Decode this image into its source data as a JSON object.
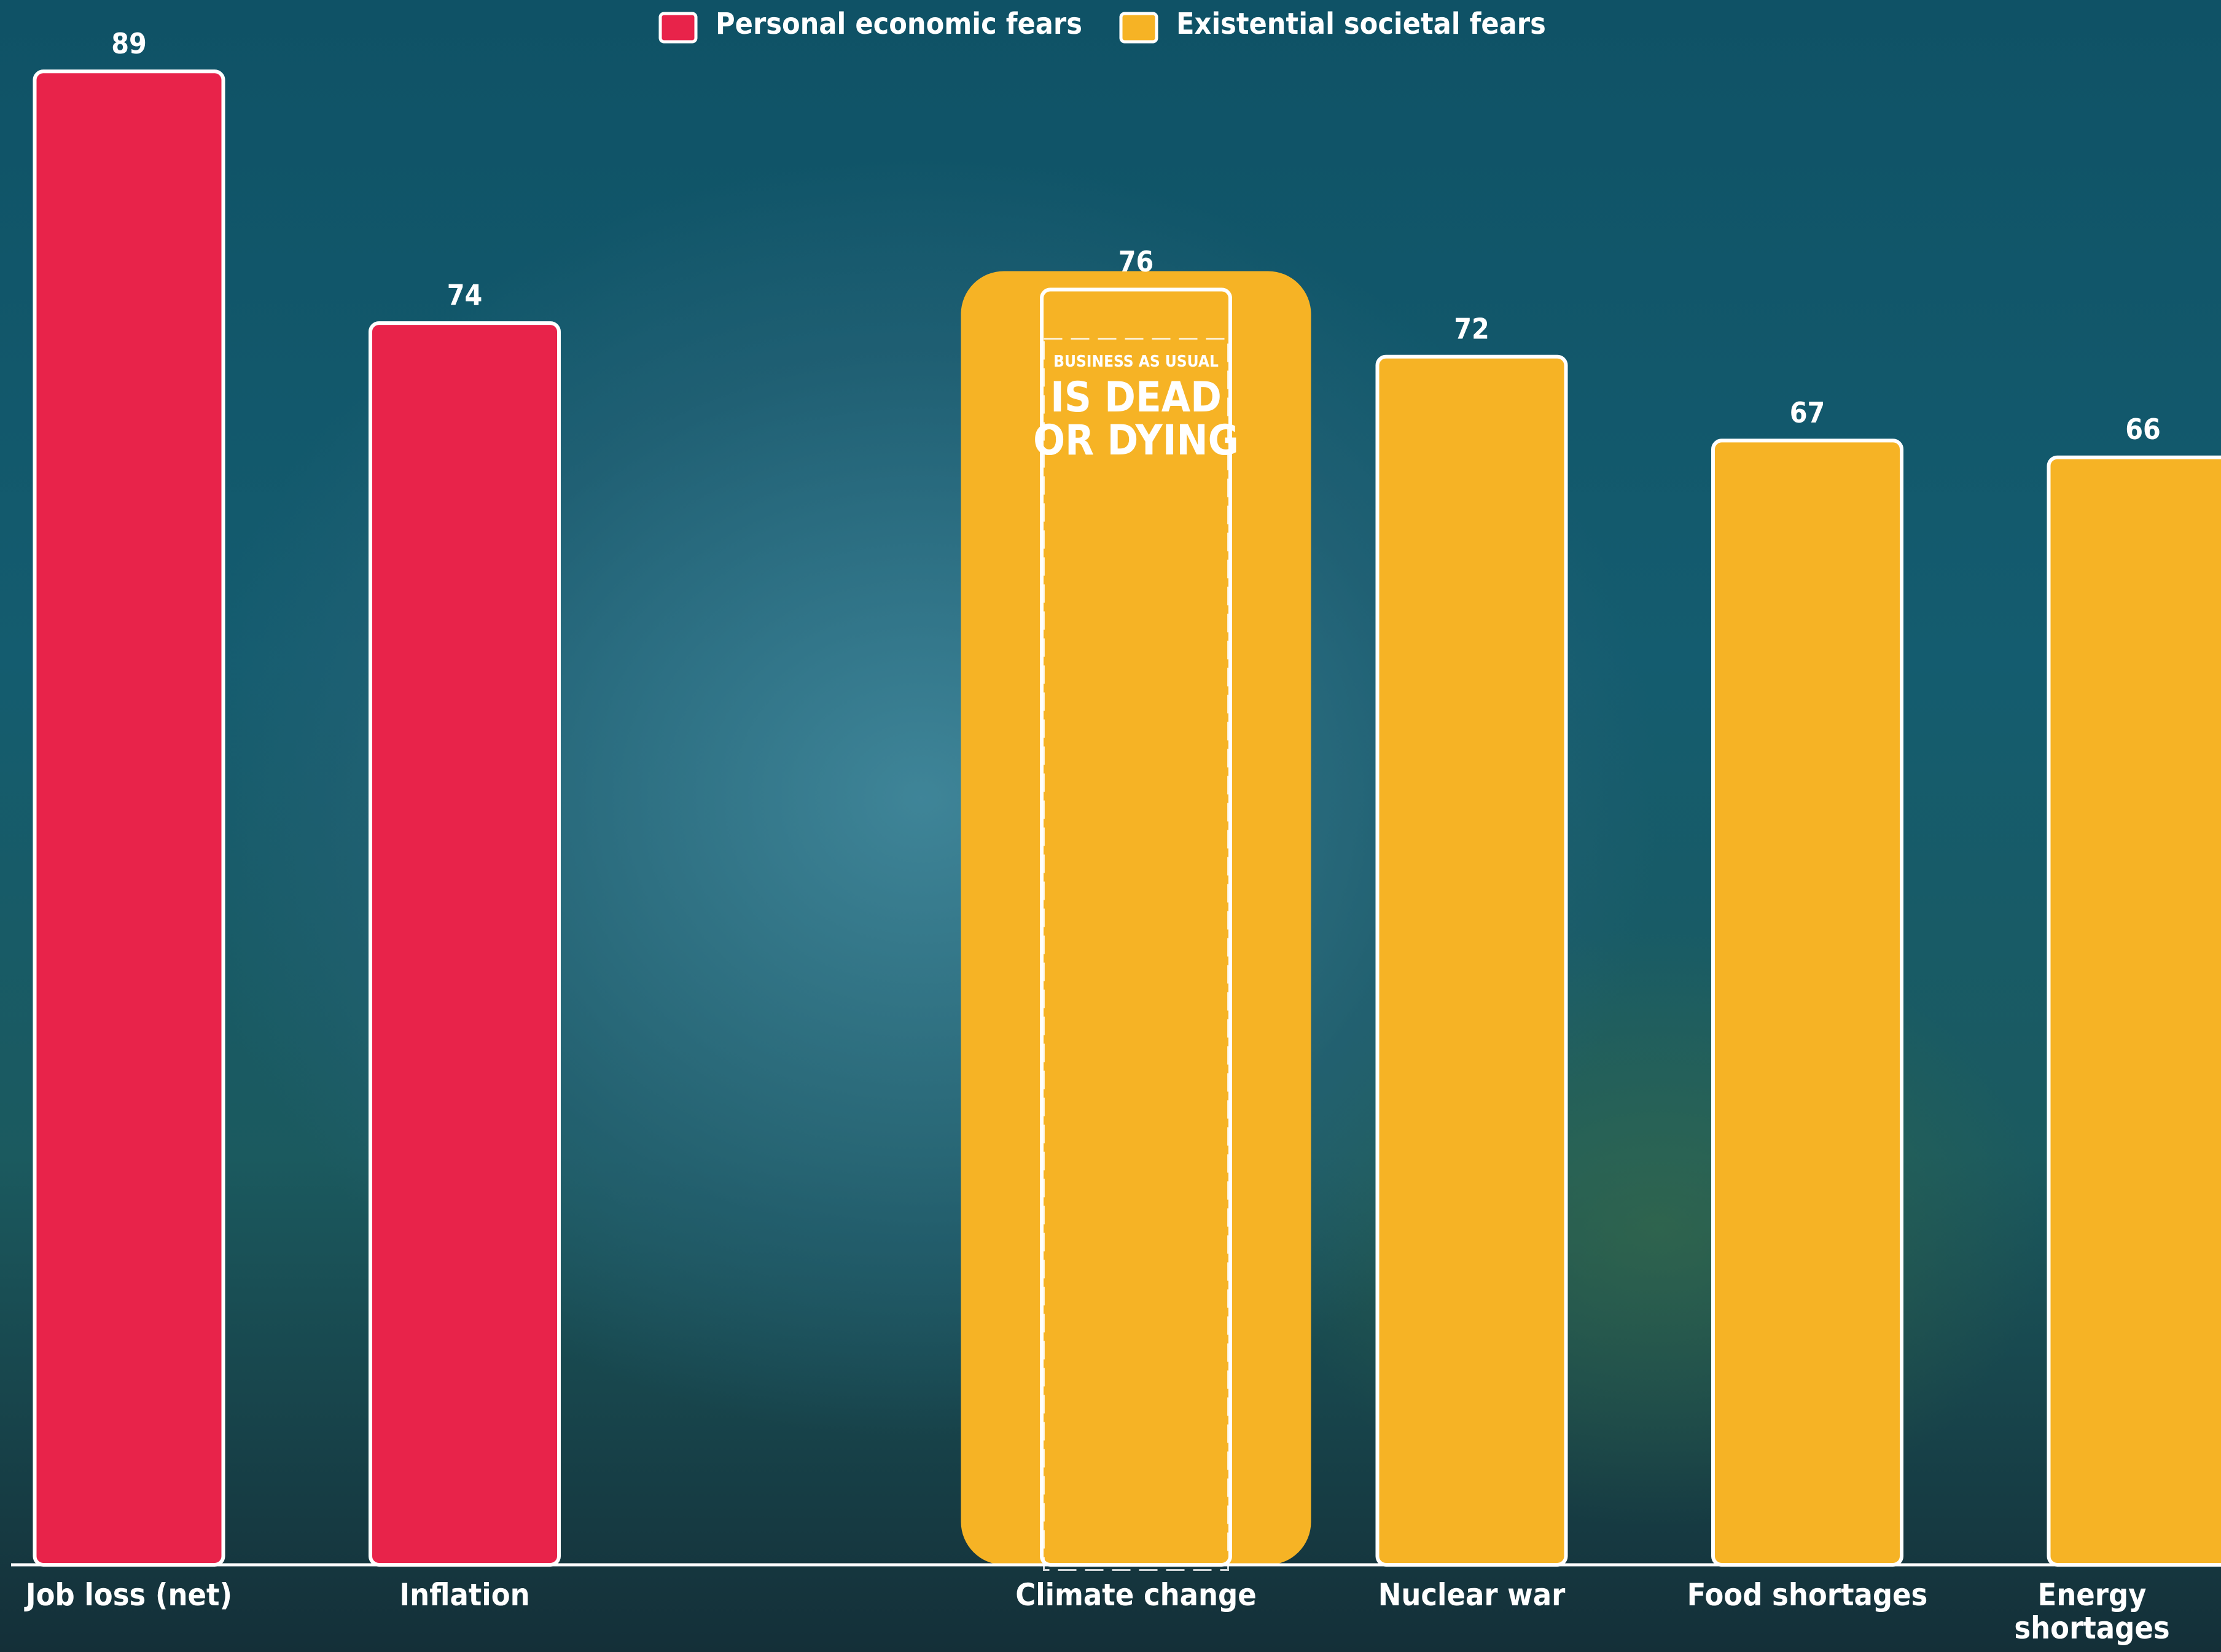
{
  "chart_data": {
    "type": "bar",
    "categories": [
      "Job loss (net)",
      "Inflation",
      null,
      "Climate change",
      "Nuclear war",
      "Food shortages",
      "Energy shortages"
    ],
    "series": [
      {
        "name": "Personal economic fears",
        "color": "#e8234a",
        "values": [
          89,
          74,
          null,
          null,
          null,
          null,
          null
        ]
      },
      {
        "name": "Existential societal fears",
        "color": "#f6b325",
        "values": [
          null,
          null,
          null,
          76,
          72,
          67,
          66
        ]
      }
    ],
    "ylim": [
      0,
      93
    ],
    "legend": "top",
    "annotation": [
      "BUSINESS AS USUAL",
      "IS DEAD",
      "OR DYING"
    ]
  }
}
